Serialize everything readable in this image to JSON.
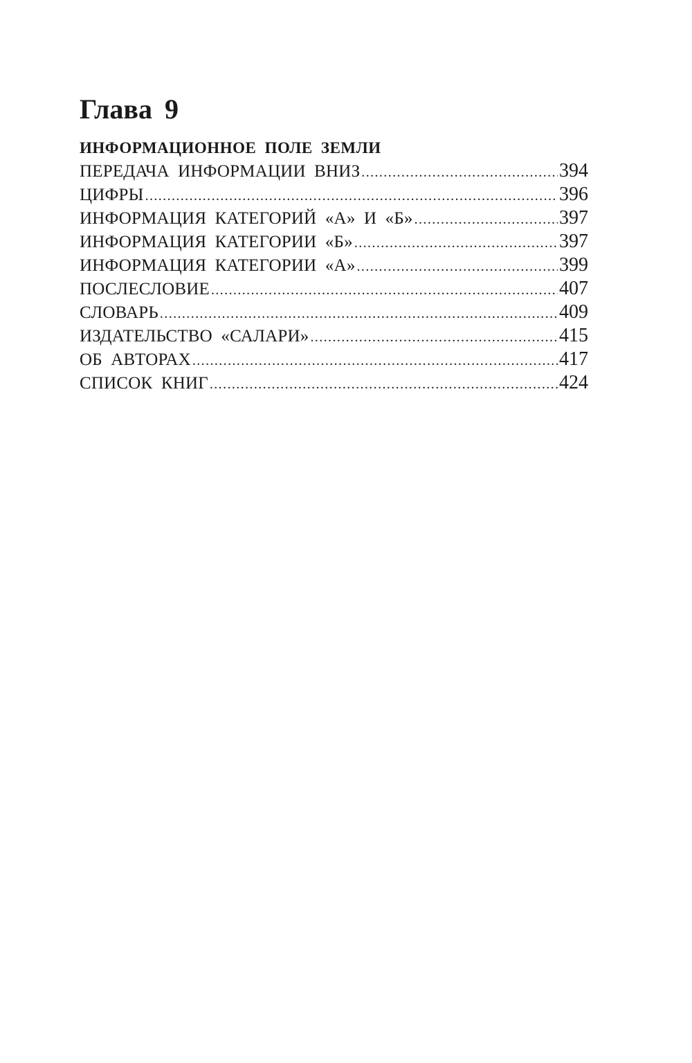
{
  "chapter_title": "Глава  9",
  "section_title": "ИНФОРМАЦИОННОЕ  ПОЛЕ  ЗЕМЛИ",
  "entries": [
    {
      "title": "ПЕРЕДАЧА  ИНФОРМАЦИИ  ВНИЗ",
      "page": "394"
    },
    {
      "title": "ЦИФРЫ",
      "page": "396"
    },
    {
      "title": "ИНФОРМАЦИЯ  КАТЕГОРИЙ  «А»  И  «Б»",
      "page": "397"
    },
    {
      "title": "ИНФОРМАЦИЯ  КАТЕГОРИИ  «Б»",
      "page": "397"
    },
    {
      "title": "ИНФОРМАЦИЯ  КАТЕГОРИИ  «А»",
      "page": "399"
    },
    {
      "title": "ПОСЛЕСЛОВИЕ",
      "page": "407"
    },
    {
      "title": "СЛОВАРЬ",
      "page": "409"
    },
    {
      "title": "ИЗДАТЕЛЬСТВО «САЛАРИ»",
      "page": "415"
    },
    {
      "title": "ОБ АВТОРАХ",
      "page": "417"
    },
    {
      "title": "СПИСОК КНИГ",
      "page": "424"
    }
  ]
}
